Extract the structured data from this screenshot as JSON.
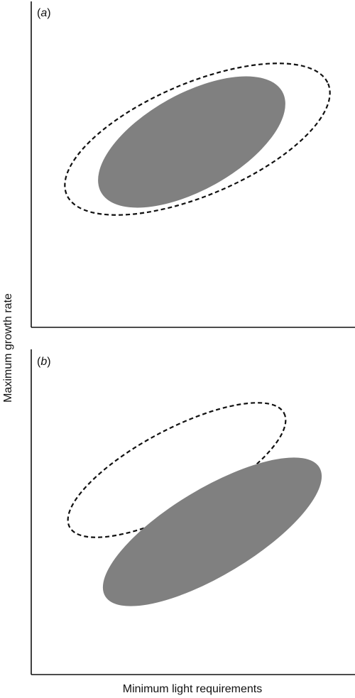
{
  "axes": {
    "ylabel": "Maximum growth rate",
    "xlabel": "Minimum light requirements"
  },
  "panels": [
    {
      "label_open": "(",
      "label_letter": "a",
      "label_close": ")",
      "description_regions": [
        "dashed outline region",
        "solid filled region"
      ]
    },
    {
      "label_open": "(",
      "label_letter": "b",
      "label_close": ")",
      "description_regions": [
        "dashed outline region",
        "solid filled region"
      ]
    }
  ],
  "colors": {
    "filled_region": "#808080",
    "outline": "#111111",
    "axes": "#111111",
    "background": "#ffffff"
  }
}
